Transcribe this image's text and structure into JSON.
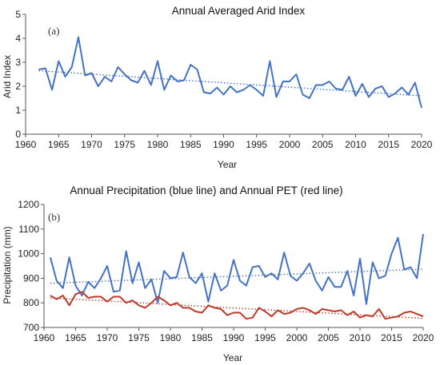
{
  "chart_data": [
    {
      "type": "line",
      "panel_label": "(a)",
      "title": "Annual Averaged Arid Index",
      "xlabel": "Year",
      "ylabel": "Arid Index",
      "xlim": [
        1960,
        2020
      ],
      "ylim": [
        0,
        5
      ],
      "xticks": [
        1960,
        1965,
        1970,
        1975,
        1980,
        1985,
        1990,
        1995,
        2000,
        2005,
        2010,
        2015,
        2020
      ],
      "yticks": [
        0,
        1,
        2,
        3,
        4,
        5
      ],
      "grid": false,
      "x": [
        1962,
        1963,
        1964,
        1965,
        1966,
        1967,
        1968,
        1969,
        1970,
        1971,
        1972,
        1973,
        1974,
        1975,
        1976,
        1977,
        1978,
        1979,
        1980,
        1981,
        1982,
        1983,
        1984,
        1985,
        1986,
        1987,
        1988,
        1989,
        1990,
        1991,
        1992,
        1993,
        1994,
        1995,
        1996,
        1997,
        1998,
        1999,
        2000,
        2001,
        2002,
        2003,
        2004,
        2005,
        2006,
        2007,
        2008,
        2009,
        2010,
        2011,
        2012,
        2013,
        2014,
        2015,
        2016,
        2017,
        2018,
        2019,
        2020
      ],
      "series": [
        {
          "color": "#4472c4",
          "style": "solid",
          "values": [
            2.7,
            2.75,
            1.85,
            3.05,
            2.4,
            2.8,
            4.05,
            2.45,
            2.55,
            2.0,
            2.4,
            2.2,
            2.8,
            2.5,
            2.25,
            2.15,
            2.65,
            2.05,
            3.05,
            1.85,
            2.45,
            2.2,
            2.25,
            2.9,
            2.7,
            1.75,
            1.7,
            1.95,
            1.65,
            2.0,
            1.75,
            1.85,
            2.05,
            1.85,
            1.6,
            3.05,
            1.55,
            2.2,
            2.2,
            2.5,
            1.65,
            1.5,
            2.05,
            2.05,
            2.2,
            1.9,
            1.85,
            2.4,
            1.6,
            2.1,
            1.55,
            1.9,
            2.0,
            1.55,
            1.7,
            1.95,
            1.65,
            2.15,
            1.1
          ]
        },
        {
          "color": "#4472c4",
          "style": "dotted",
          "trend": true,
          "x": [
            1962,
            2020
          ],
          "values": [
            2.65,
            1.6
          ]
        }
      ]
    },
    {
      "type": "line",
      "panel_label": "(b)",
      "title": "Annual Precipitation (blue line) and Annual PET (red line)",
      "xlabel": "Year",
      "ylabel": "Precipitation (mm)",
      "xlim": [
        1960,
        2020
      ],
      "ylim": [
        700,
        1200
      ],
      "xticks": [
        1960,
        1965,
        1970,
        1975,
        1980,
        1985,
        1990,
        1995,
        2000,
        2005,
        2010,
        2015,
        2020
      ],
      "yticks": [
        700,
        800,
        900,
        1000,
        1100,
        1200
      ],
      "grid": false,
      "x": [
        1961,
        1962,
        1963,
        1964,
        1965,
        1966,
        1967,
        1968,
        1969,
        1970,
        1971,
        1972,
        1973,
        1974,
        1975,
        1976,
        1977,
        1978,
        1979,
        1980,
        1981,
        1982,
        1983,
        1984,
        1985,
        1986,
        1987,
        1988,
        1989,
        1990,
        1991,
        1992,
        1993,
        1994,
        1995,
        1996,
        1997,
        1998,
        1999,
        2000,
        2001,
        2002,
        2003,
        2004,
        2005,
        2006,
        2007,
        2008,
        2009,
        2010,
        2011,
        2012,
        2013,
        2014,
        2015,
        2016,
        2017,
        2018,
        2019,
        2020
      ],
      "series": [
        {
          "color": "#4472c4",
          "style": "solid",
          "values": [
            985,
            890,
            860,
            985,
            870,
            830,
            885,
            860,
            900,
            950,
            845,
            850,
            1010,
            880,
            965,
            860,
            895,
            800,
            930,
            900,
            905,
            1005,
            905,
            880,
            920,
            805,
            920,
            850,
            870,
            975,
            890,
            870,
            945,
            950,
            905,
            920,
            895,
            1005,
            910,
            890,
            920,
            960,
            890,
            850,
            905,
            865,
            865,
            930,
            830,
            980,
            795,
            965,
            900,
            910,
            1000,
            1065,
            935,
            945,
            900,
            1080
          ]
        },
        {
          "color": "#c0392b",
          "style": "solid",
          "values": [
            830,
            815,
            830,
            790,
            835,
            845,
            820,
            825,
            825,
            805,
            825,
            825,
            800,
            810,
            790,
            780,
            800,
            825,
            810,
            790,
            800,
            780,
            780,
            765,
            760,
            790,
            780,
            775,
            750,
            760,
            760,
            735,
            740,
            780,
            765,
            745,
            770,
            755,
            760,
            775,
            780,
            770,
            755,
            775,
            770,
            765,
            770,
            750,
            765,
            740,
            750,
            745,
            775,
            735,
            740,
            745,
            760,
            765,
            755,
            745
          ]
        },
        {
          "color": "#4472c4",
          "style": "dotted",
          "trend": true,
          "x": [
            1961,
            2020
          ],
          "values": [
            880,
            937
          ]
        },
        {
          "color": "#c0392b",
          "style": "dotted",
          "trend": true,
          "x": [
            1961,
            2020
          ],
          "values": [
            820,
            737
          ]
        }
      ]
    }
  ]
}
